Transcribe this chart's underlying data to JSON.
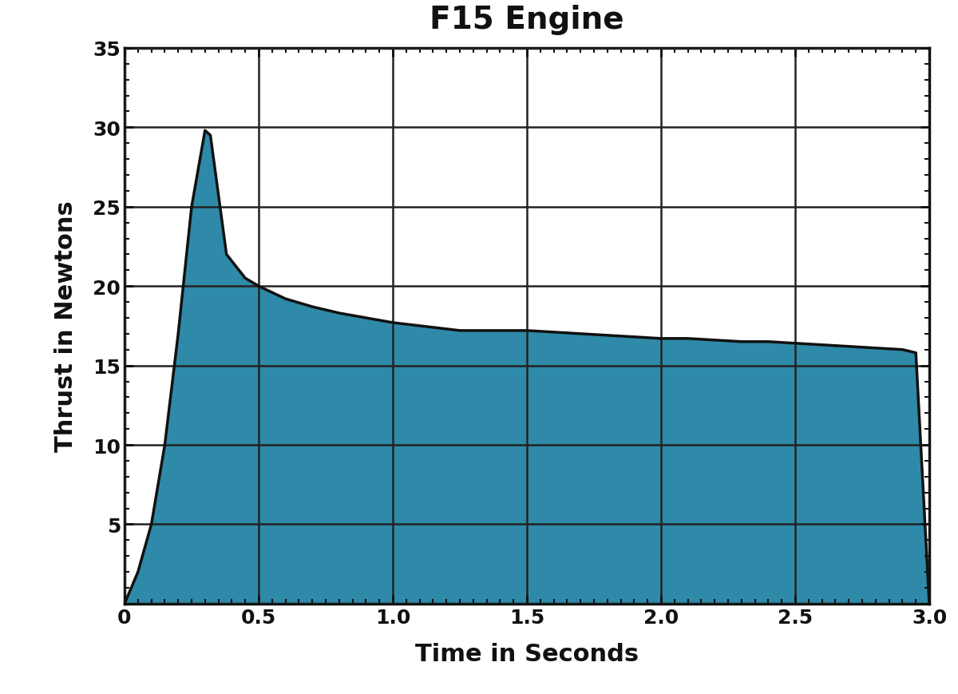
{
  "title": "F15 Engine",
  "xlabel": "Time in Seconds",
  "ylabel": "Thrust in Newtons",
  "fill_color": "#2e8aa8",
  "line_color": "#111111",
  "background_color": "#ffffff",
  "xlim": [
    0,
    3.0
  ],
  "ylim": [
    0,
    35
  ],
  "xticks": [
    0,
    0.5,
    1.0,
    1.5,
    2.0,
    2.5,
    3.0
  ],
  "yticks": [
    0,
    5,
    10,
    15,
    20,
    25,
    30,
    35
  ],
  "thrust_curve": {
    "time": [
      0.0,
      0.05,
      0.1,
      0.15,
      0.2,
      0.25,
      0.3,
      0.32,
      0.38,
      0.45,
      0.5,
      0.6,
      0.7,
      0.8,
      0.9,
      1.0,
      1.1,
      1.2,
      1.25,
      1.3,
      1.4,
      1.5,
      1.6,
      1.7,
      1.8,
      1.9,
      2.0,
      2.1,
      2.2,
      2.3,
      2.4,
      2.5,
      2.6,
      2.7,
      2.8,
      2.9,
      2.95,
      3.0
    ],
    "thrust": [
      0.0,
      2.0,
      5.0,
      10.0,
      17.0,
      25.0,
      29.8,
      29.5,
      22.0,
      20.5,
      20.0,
      19.2,
      18.7,
      18.3,
      18.0,
      17.7,
      17.5,
      17.3,
      17.2,
      17.2,
      17.2,
      17.2,
      17.1,
      17.0,
      16.9,
      16.8,
      16.7,
      16.7,
      16.6,
      16.5,
      16.5,
      16.4,
      16.3,
      16.2,
      16.1,
      16.0,
      15.8,
      0.0
    ]
  }
}
